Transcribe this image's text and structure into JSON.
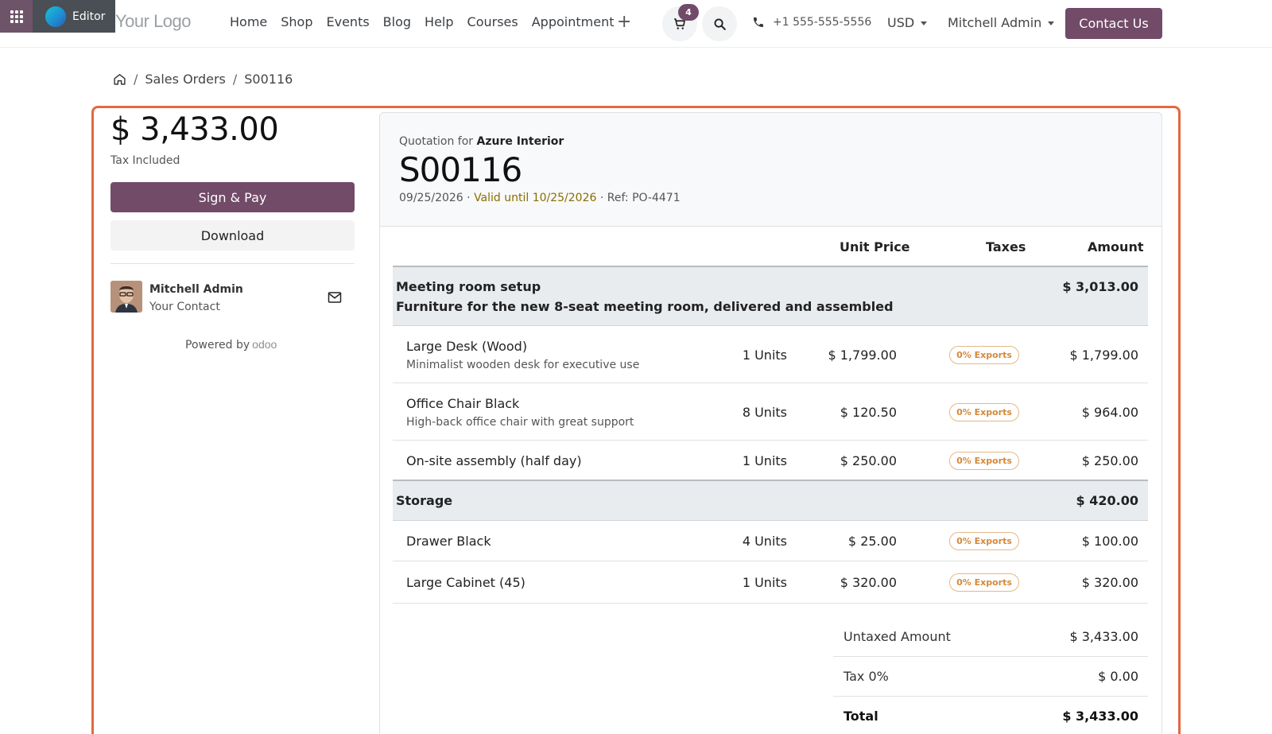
{
  "editor": {
    "label": "Editor"
  },
  "header": {
    "logo": "Your Logo",
    "nav": [
      "Home",
      "Shop",
      "Events",
      "Blog",
      "Help",
      "Courses",
      "Appointment"
    ],
    "cart_count": "4",
    "phone": "+1 555-555-5556",
    "currency": "USD",
    "user": "Mitchell Admin",
    "contact_label": "Contact Us"
  },
  "breadcrumb": {
    "items": [
      "Sales Orders",
      "S00116"
    ]
  },
  "sidebar": {
    "total": "$ 3,433.00",
    "tax_note": "Tax Included",
    "sign_label": "Sign & Pay",
    "download_label": "Download",
    "contact_name": "Mitchell Admin",
    "contact_role": "Your Contact",
    "powered_by": "Powered by",
    "odoo": "odoo"
  },
  "quote": {
    "for_prefix": "Quotation for",
    "customer": "Azure Interior",
    "number": "S00116",
    "date": "09/25/2026",
    "valid": "Valid until 10/25/2026",
    "ref": "Ref: PO-4471"
  },
  "table": {
    "headers": {
      "unit_price": "Unit Price",
      "taxes": "Taxes",
      "amount": "Amount"
    },
    "sections": [
      {
        "name": "Meeting room setup",
        "note": "Furniture for the new 8-seat meeting room, delivered and assembled",
        "amount": "$ 3,013.00"
      },
      {
        "name": "Storage",
        "amount": "$ 420.00"
      }
    ],
    "rows": [
      {
        "name": "Large Desk (Wood)",
        "desc": "Minimalist wooden desk for executive use",
        "qty": "1 Units",
        "price": "$ 1,799.00",
        "tax": "0% Exports",
        "amount": "$ 1,799.00"
      },
      {
        "name": "Office Chair Black",
        "desc": "High-back office chair with great support",
        "qty": "8 Units",
        "price": "$ 120.50",
        "tax": "0% Exports",
        "amount": "$ 964.00"
      },
      {
        "name": "On-site assembly (half day)",
        "desc": "",
        "qty": "1 Units",
        "price": "$ 250.00",
        "tax": "0% Exports",
        "amount": "$ 250.00"
      },
      {
        "name": "Drawer Black",
        "desc": "",
        "qty": "4 Units",
        "price": "$ 25.00",
        "tax": "0% Exports",
        "amount": "$ 100.00"
      },
      {
        "name": "Large Cabinet (45)",
        "desc": "",
        "qty": "1 Units",
        "price": "$ 320.00",
        "tax": "0% Exports",
        "amount": "$ 320.00"
      }
    ]
  },
  "totals": {
    "untaxed_label": "Untaxed Amount",
    "untaxed": "$ 3,433.00",
    "tax_label": "Tax 0%",
    "tax": "$ 0.00",
    "total_label": "Total",
    "total": "$ 3,433.00"
  },
  "colors": {
    "primary": "#714b67",
    "frame": "#e2693f",
    "tax_badge": "#d4893c"
  }
}
